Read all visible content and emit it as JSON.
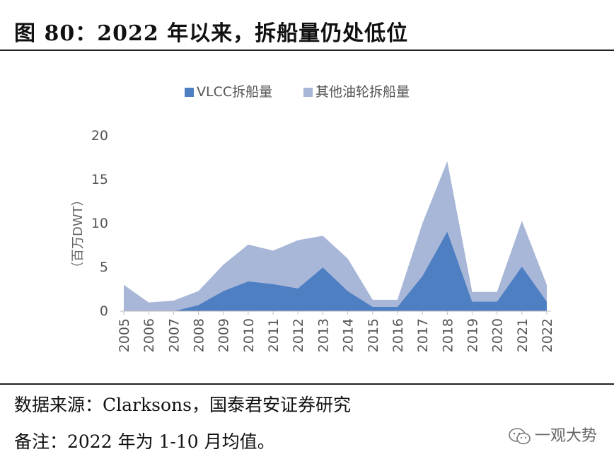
{
  "header": {
    "title": "图 80：2022 年以来，拆船量仍处低位"
  },
  "footer": {
    "source": "数据来源：Clarksons，国泰君安证券研究",
    "note": "备注：2022 年为 1-10 月均值。"
  },
  "watermark": {
    "text": "一观大势",
    "icon": "wechat-icon"
  },
  "chart_data": {
    "type": "area",
    "stacked": true,
    "title": "",
    "xlabel": "",
    "ylabel": "（百万DWT）",
    "ylim": [
      0,
      20
    ],
    "yticks": [
      0,
      5,
      10,
      15,
      20
    ],
    "grid": false,
    "legend_position": "top-center",
    "x": [
      "2005",
      "2006",
      "2007",
      "2008",
      "2009",
      "2010",
      "2011",
      "2012",
      "2013",
      "2014",
      "2015",
      "2016",
      "2017",
      "2018",
      "2019",
      "2020",
      "2021",
      "2022"
    ],
    "series": [
      {
        "name": "VLCC拆船量",
        "color": "#4f7fc3",
        "values": [
          0,
          0,
          0,
          0.7,
          2.3,
          3.4,
          3.1,
          2.6,
          5.0,
          2.3,
          0.5,
          0.5,
          4.0,
          9.1,
          1.1,
          1.1,
          5.1,
          1.1
        ]
      },
      {
        "name": "其他油轮拆船量",
        "color": "#a8b6d8",
        "values": [
          3.0,
          1.0,
          1.2,
          1.6,
          3.0,
          4.2,
          3.8,
          5.5,
          3.6,
          3.7,
          0.8,
          0.8,
          6.0,
          8.0,
          1.1,
          1.1,
          5.2,
          1.9
        ]
      }
    ]
  }
}
